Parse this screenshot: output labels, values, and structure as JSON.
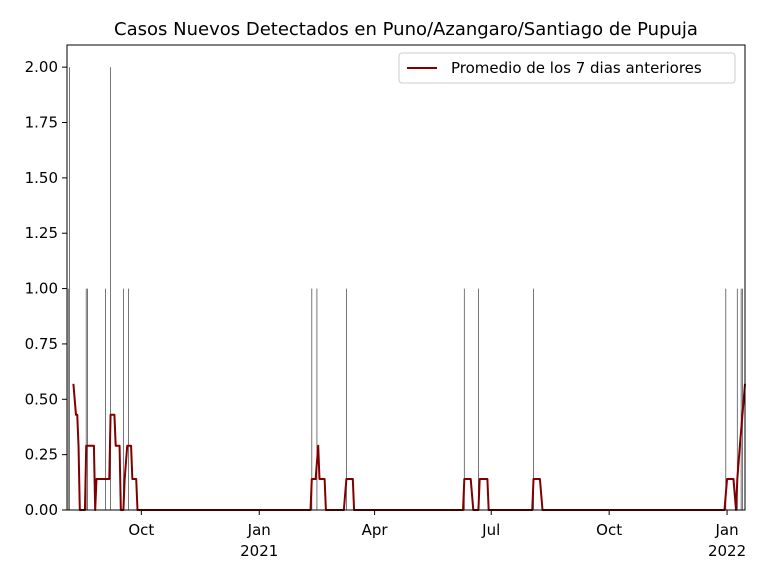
{
  "chart_data": {
    "type": "line",
    "title": "Casos Nuevos Detectados en Puno/Azangaro/Santiago de Pupuja",
    "xlim": [
      0,
      529
    ],
    "xticks": [
      {
        "value": 58,
        "label": "Oct"
      },
      {
        "value": 150,
        "label": "Jan\n2021"
      },
      {
        "value": 240,
        "label": "Apr"
      },
      {
        "value": 331,
        "label": "Jul"
      },
      {
        "value": 423,
        "label": "Oct"
      },
      {
        "value": 515,
        "label": "Jan\n2022"
      }
    ],
    "ylim": [
      0,
      2.1
    ],
    "yticks": [
      {
        "value": 0,
        "label": "0.00"
      },
      {
        "value": 0.25,
        "label": "0.25"
      },
      {
        "value": 0.5,
        "label": "0.50"
      },
      {
        "value": 0.75,
        "label": "0.75"
      },
      {
        "value": 1,
        "label": "1.00"
      },
      {
        "value": 1.25,
        "label": "1.25"
      },
      {
        "value": 1.5,
        "label": "1.50"
      },
      {
        "value": 1.75,
        "label": "1.75"
      },
      {
        "value": 2,
        "label": "2.00"
      }
    ],
    "legend": "upper right",
    "bars": {
      "color": "#555555",
      "x": [
        1,
        2,
        15,
        16,
        30,
        34,
        44,
        48,
        191,
        195,
        218,
        310,
        321,
        364,
        514,
        523,
        526,
        527
      ],
      "values": [
        1,
        2,
        1,
        1,
        1,
        2,
        1,
        1,
        1,
        1,
        1,
        1,
        1,
        1,
        1,
        1,
        1,
        1
      ]
    },
    "series": [
      {
        "name": "Promedio de los 7 dias anteriores",
        "color": "#800000",
        "x": [
          5,
          7,
          8,
          9,
          10,
          14,
          15,
          21,
          22,
          23,
          33,
          34,
          37,
          38,
          41,
          42,
          44,
          45,
          47,
          50,
          51,
          54,
          55,
          190,
          191,
          194,
          196,
          197,
          201,
          202,
          216,
          218,
          223,
          224,
          309,
          310,
          315,
          317,
          321,
          322,
          328,
          329,
          363,
          364,
          369,
          371,
          513,
          515,
          520,
          522,
          523,
          525,
          527,
          529
        ],
        "values": [
          0.57,
          0.43,
          0.43,
          0.29,
          0,
          0,
          0.29,
          0.29,
          0,
          0.14,
          0.14,
          0.43,
          0.43,
          0.29,
          0.29,
          0,
          0,
          0.14,
          0.29,
          0.29,
          0.14,
          0.14,
          0,
          0,
          0.14,
          0.14,
          0.29,
          0.14,
          0.14,
          0,
          0,
          0.14,
          0.14,
          0,
          0,
          0.14,
          0.14,
          0,
          0,
          0.14,
          0.14,
          0,
          0,
          0.14,
          0.14,
          0,
          0,
          0.14,
          0.14,
          0,
          0.14,
          0.29,
          0.43,
          0.57
        ]
      }
    ]
  }
}
